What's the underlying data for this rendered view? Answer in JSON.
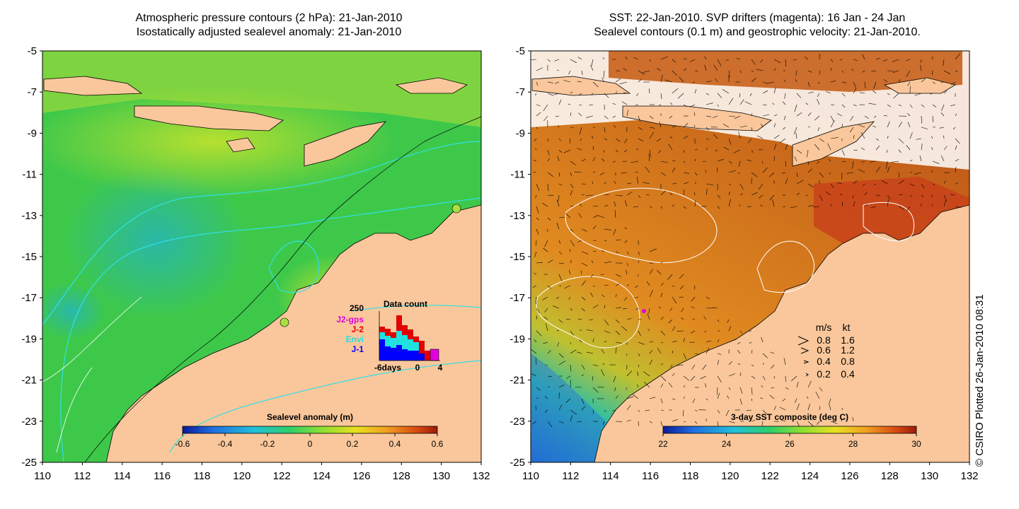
{
  "left_panel": {
    "title_line1": "Atmospheric pressure contours (2 hPa): 21-Jan-2010",
    "title_line2": "Isostatically adjusted sealevel anomaly: 21-Jan-2010",
    "colorbar_label": "Sealevel anomaly (m)",
    "colorbar_ticks": [
      "-0.6",
      "-0.4",
      "-0.2",
      "0",
      "0.2",
      "0.4",
      "0.6"
    ],
    "colorbar_colors": [
      "#0a1a9a",
      "#1f6fe0",
      "#22c0d8",
      "#2ecf6a",
      "#8ee030",
      "#e8e020",
      "#f0a020",
      "#d84a10",
      "#9a1a0a"
    ],
    "inset": {
      "title": "Data count",
      "ymax_label": "250",
      "legend": [
        {
          "label": "J2-gps",
          "color": "#e000e0"
        },
        {
          "label": "J-2",
          "color": "#e00000"
        },
        {
          "label": "Envi",
          "color": "#20e0e0"
        },
        {
          "label": "J-1",
          "color": "#0000ff"
        }
      ],
      "x_ticks": [
        "-6days",
        "0",
        "4"
      ]
    }
  },
  "right_panel": {
    "title_line1": "SST: 22-Jan-2010. SVP drifters (magenta): 16 Jan - 24 Jan",
    "title_line2": "Sealevel contours (0.1 m) and geostrophic velocity: 21-Jan-2010.",
    "colorbar_label": "3-day SST composite (deg C)",
    "colorbar_ticks": [
      "22",
      "24",
      "26",
      "28",
      "30"
    ],
    "colorbar_colors": [
      "#0a1a9a",
      "#1f6fe0",
      "#22c0d8",
      "#2ecf6a",
      "#8ee030",
      "#e8e020",
      "#f0a020",
      "#d84a10",
      "#9a1a0a"
    ],
    "speed_legend": {
      "header_ms": "m/s",
      "header_kt": "kt",
      "rows": [
        {
          "ms": "0.8",
          "kt": "1.6"
        },
        {
          "ms": "0.6",
          "kt": "1.2"
        },
        {
          "ms": "0.4",
          "kt": "0.8"
        },
        {
          "ms": "0.2",
          "kt": "0.4"
        }
      ]
    }
  },
  "axes": {
    "lon_ticks": [
      "110",
      "112",
      "114",
      "116",
      "118",
      "120",
      "122",
      "124",
      "126",
      "128",
      "130",
      "132"
    ],
    "lat_ticks": [
      "-5",
      "-7",
      "-9",
      "-11",
      "-13",
      "-15",
      "-17",
      "-19",
      "-21",
      "-23",
      "-25"
    ]
  },
  "credit": "© CSIRO Plotted 26-Jan-2010 08:31",
  "colors": {
    "land": "#f9c79b",
    "ocean_sla": "#3ec84a",
    "ocean_sst": "#d07018"
  }
}
